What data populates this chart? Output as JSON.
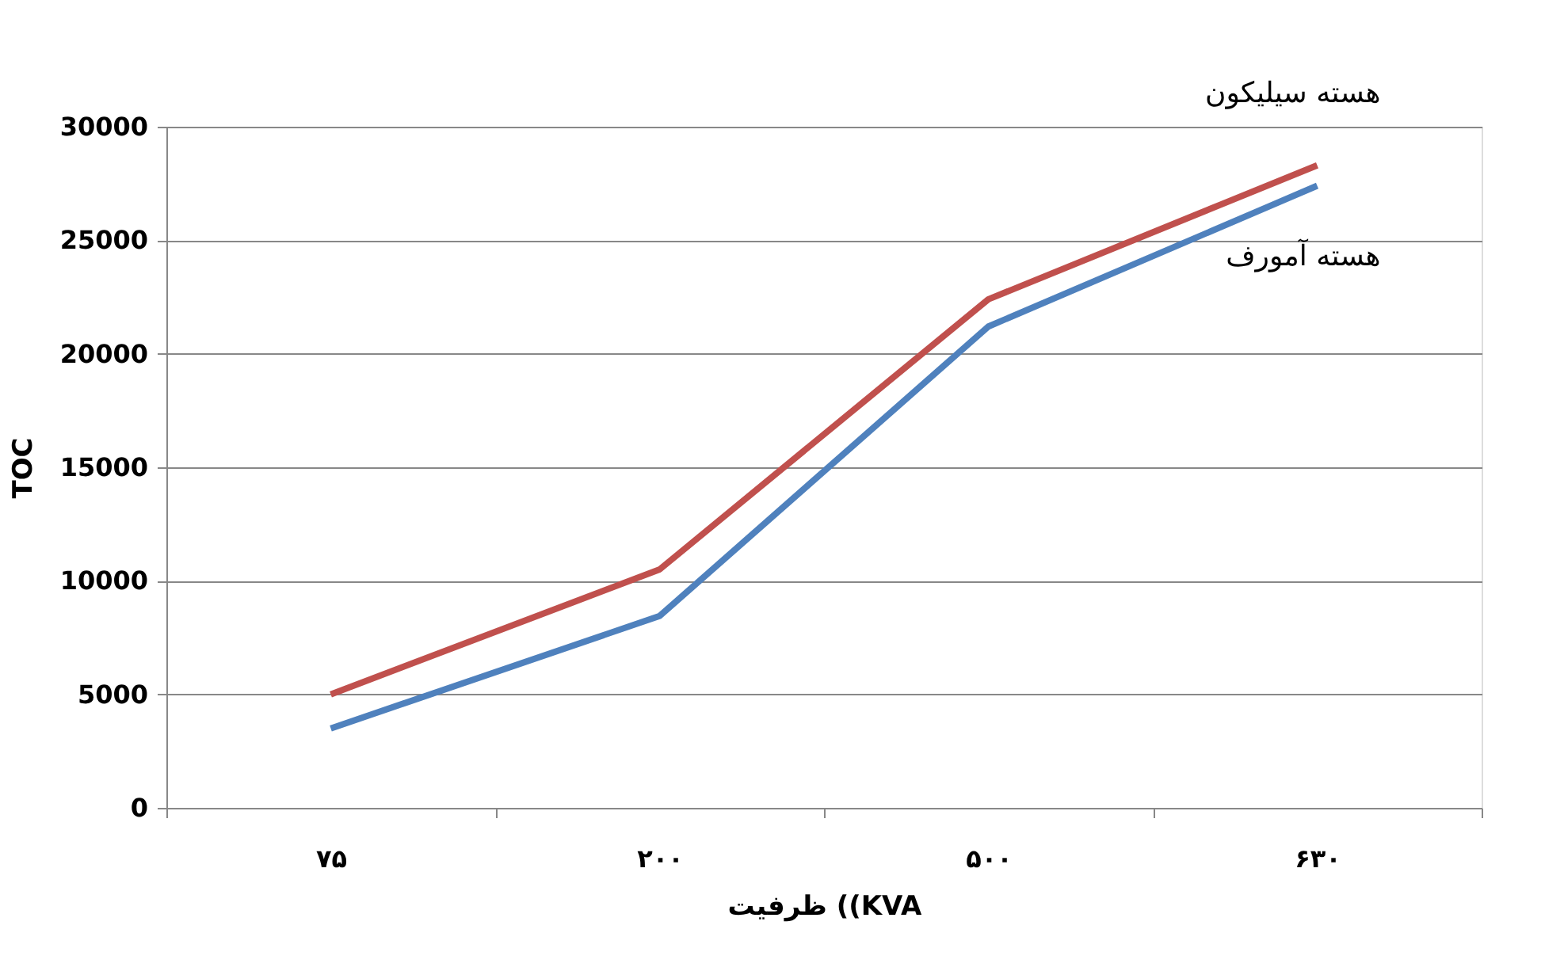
{
  "chart_data": {
    "type": "line",
    "xlabel": "ظرفیت ((KVA",
    "ylabel": "TOC",
    "categories": [
      "۷۵",
      "۲۰۰",
      "۵۰۰",
      "۶۳۰"
    ],
    "series": [
      {
        "name": "هسته سیلیکون",
        "color": "#c0504d",
        "values": [
          5000,
          10500,
          22400,
          28300
        ]
      },
      {
        "name": "هسته آمورف",
        "color": "#4f81bd",
        "values": [
          3500,
          8450,
          21200,
          27400
        ]
      }
    ],
    "ylim": [
      0,
      30000
    ],
    "yticks": [
      0,
      5000,
      10000,
      15000,
      20000,
      25000,
      30000
    ],
    "grid": "y",
    "legend": false,
    "marker": "none",
    "line_style": "solid"
  }
}
